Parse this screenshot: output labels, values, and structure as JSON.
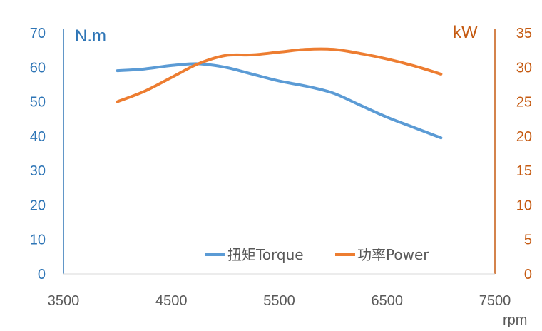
{
  "colors": {
    "torque": "#5B9BD5",
    "power": "#ED7D31",
    "left_axis": "#2E75B6",
    "right_axis": "#C55A11",
    "x_axis": "#595959"
  },
  "chart_data": {
    "type": "line",
    "x_unit": "rpm",
    "xlim": [
      3500,
      7500
    ],
    "x_ticks": [
      "3500",
      "4500",
      "5500",
      "6500",
      "7500"
    ],
    "y_left": {
      "unit": "N.m",
      "lim": [
        0,
        70
      ],
      "ticks": [
        "0",
        "10",
        "20",
        "30",
        "40",
        "50",
        "60",
        "70"
      ]
    },
    "y_right": {
      "unit": "kW",
      "lim": [
        0,
        35
      ],
      "ticks": [
        "0",
        "5",
        "10",
        "15",
        "20",
        "25",
        "30",
        "35"
      ]
    },
    "grid": false,
    "legend_position": "bottom-right",
    "series": [
      {
        "name": "扭矩Torque",
        "axis": "left",
        "x": [
          4000,
          4250,
          4500,
          4750,
          5000,
          5250,
          5500,
          5750,
          6000,
          6250,
          6500,
          6750,
          7000
        ],
        "values": [
          59,
          59.5,
          60.5,
          61,
          60,
          58,
          56,
          54.5,
          52.5,
          49,
          45.5,
          42.5,
          39.5
        ]
      },
      {
        "name": "功率Power",
        "axis": "right",
        "x": [
          4000,
          4250,
          4500,
          4750,
          5000,
          5250,
          5500,
          5750,
          6000,
          6250,
          6500,
          6750,
          7000
        ],
        "values": [
          25,
          26.5,
          28.5,
          30.5,
          31.7,
          31.8,
          32.2,
          32.6,
          32.6,
          32,
          31.2,
          30.2,
          29
        ]
      }
    ]
  }
}
